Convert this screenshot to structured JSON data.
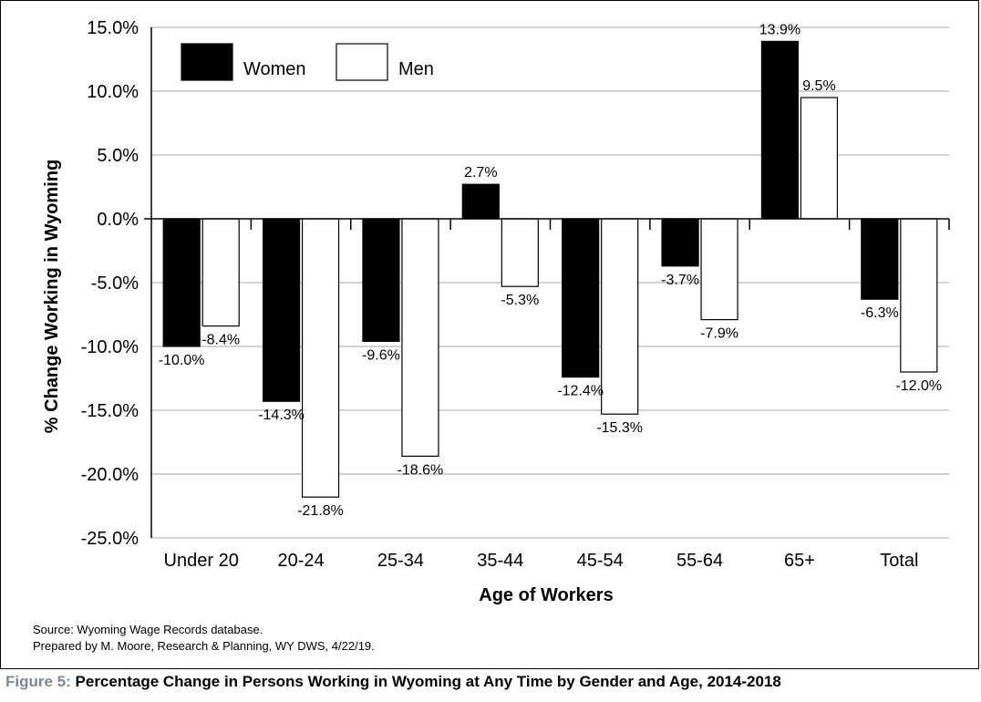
{
  "chart_data": {
    "type": "bar",
    "categories": [
      "Under 20",
      "20-24",
      "25-34",
      "35-44",
      "45-54",
      "55-64",
      "65+",
      "Total"
    ],
    "series": [
      {
        "name": "Women",
        "color": "#000000",
        "values": [
          -10.0,
          -14.3,
          -9.6,
          2.7,
          -12.4,
          -3.7,
          13.9,
          -6.3
        ],
        "labels": [
          "-10.0%",
          "-14.3%",
          "-9.6%",
          "2.7%",
          "-12.4%",
          "-3.7%",
          "13.9%",
          "-6.3%"
        ]
      },
      {
        "name": "Men",
        "color": "#ffffff",
        "values": [
          -8.4,
          -21.8,
          -18.6,
          -5.3,
          -15.3,
          -7.9,
          9.5,
          -12.0
        ],
        "labels": [
          "-8.4%",
          "-21.8%",
          "-18.6%",
          "-5.3%",
          "-15.3%",
          "-7.9%",
          "9.5%",
          "-12.0%"
        ]
      }
    ],
    "xlabel": "Age of Workers",
    "ylabel": "% Change Working in Wyoming",
    "ylim": [
      -25,
      15
    ],
    "yticks": [
      15,
      10,
      5,
      0,
      -5,
      -10,
      -15,
      -20,
      -25
    ],
    "ytick_labels": [
      "15.0%",
      "10.0%",
      "5.0%",
      "0.0%",
      "-5.0%",
      "-10.0%",
      "-15.0%",
      "-20.0%",
      "-25.0%"
    ],
    "grid": true,
    "legend_position": "top-left"
  },
  "notes": {
    "source": "Source: Wyoming Wage Records database.",
    "prepared": "Prepared by M. Moore, Research & Planning, WY DWS, 4/22/19."
  },
  "caption": {
    "figure": "Figure 5:",
    "text": " Percentage Change in Persons Working in Wyoming at Any Time by Gender and Age, 2014-2018"
  }
}
